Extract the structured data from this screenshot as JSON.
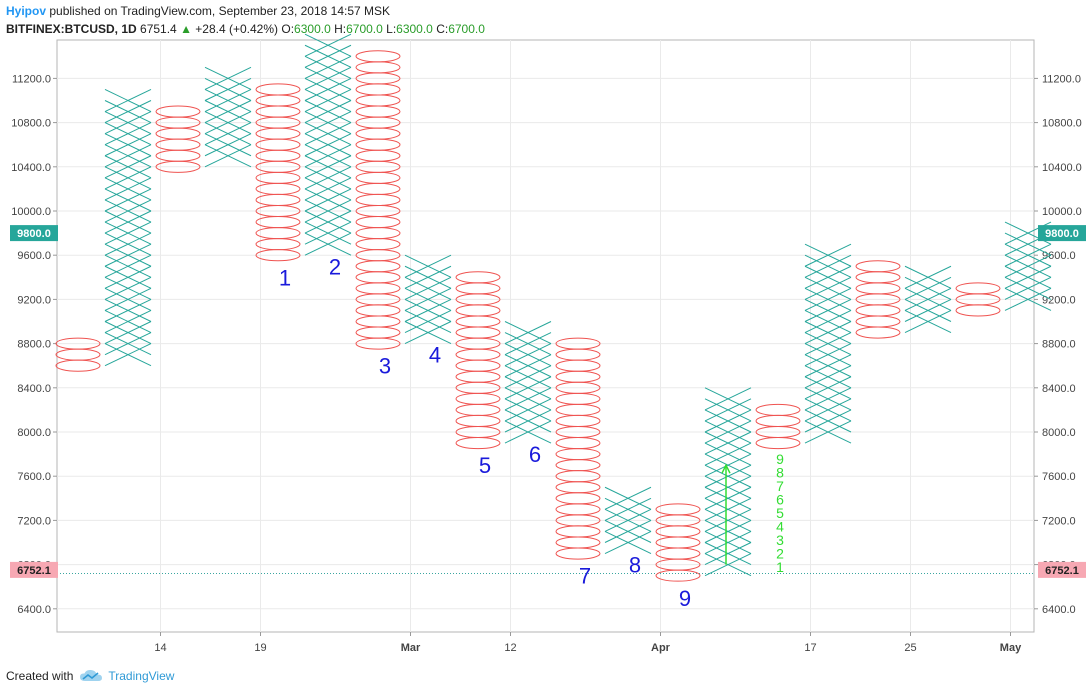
{
  "header": {
    "user": "Hyipov",
    "published": "published on TradingView.com, September 23, 2018 14:57 MSK",
    "symbol": "BITFINEX:BTCUSD, 1D",
    "last": "6751.4",
    "arrow": "▲",
    "change": "+28.4 (+0.42%)",
    "o_label": "O:",
    "o_val": "6300.0",
    "h_label": "H:",
    "h_val": "6700.0",
    "l_label": "L:",
    "l_val": "6300.0",
    "c_label": "C:",
    "c_val": "6700.0"
  },
  "footer": {
    "created": "Created with",
    "brand": "TradingView"
  },
  "colors": {
    "x_color": "#26a69a",
    "o_color": "#ef5350",
    "label_color": "#1a1adb",
    "green_text": "#33dd33",
    "box_9800": "#26a69a",
    "box_6752": "#f7a8b3",
    "grid": "#eaeaea"
  },
  "chart_data": {
    "type": "point-and-figure",
    "box_size": 100,
    "ylim": [
      6200,
      11600
    ],
    "y_ticks": [
      "6400.0",
      "6800.0",
      "7200.0",
      "7600.0",
      "8000.0",
      "8400.0",
      "8800.0",
      "9200.0",
      "9600.0",
      "10000.0",
      "10400.0",
      "10800.0",
      "11200.0"
    ],
    "x_ticks": [
      {
        "label": "14",
        "col": 1.65
      },
      {
        "label": "19",
        "col": 3.65
      },
      {
        "label": "Mar",
        "col": 6.65
      },
      {
        "label": "12",
        "col": 8.65
      },
      {
        "label": "Apr",
        "col": 11.65
      },
      {
        "label": "17",
        "col": 14.65
      },
      {
        "label": "25",
        "col": 16.65
      },
      {
        "label": "May",
        "col": 18.65
      }
    ],
    "columns": [
      {
        "type": "O",
        "low": 8600,
        "high": 8800
      },
      {
        "type": "X",
        "low": 8700,
        "high": 11000
      },
      {
        "type": "O",
        "low": 10400,
        "high": 10900
      },
      {
        "type": "X",
        "low": 10500,
        "high": 11200
      },
      {
        "type": "O",
        "low": 9600,
        "high": 11100
      },
      {
        "type": "X",
        "low": 9700,
        "high": 11500
      },
      {
        "type": "O",
        "low": 8800,
        "high": 11400
      },
      {
        "type": "X",
        "low": 8900,
        "high": 9500
      },
      {
        "type": "O",
        "low": 7900,
        "high": 9400
      },
      {
        "type": "X",
        "low": 8000,
        "high": 8900
      },
      {
        "type": "O",
        "low": 6900,
        "high": 8800
      },
      {
        "type": "X",
        "low": 7000,
        "high": 7400
      },
      {
        "type": "O",
        "low": 6700,
        "high": 7300
      },
      {
        "type": "X",
        "low": 6800,
        "high": 8300
      },
      {
        "type": "O",
        "low": 7900,
        "high": 8200
      },
      {
        "type": "X",
        "low": 8000,
        "high": 9600
      },
      {
        "type": "O",
        "low": 8900,
        "high": 9500
      },
      {
        "type": "X",
        "low": 9000,
        "high": 9400
      },
      {
        "type": "O",
        "low": 9100,
        "high": 9300
      },
      {
        "type": "X",
        "low": 9200,
        "high": 9800
      }
    ],
    "annotations": [
      {
        "text": "1",
        "col": 4,
        "y": 9400
      },
      {
        "text": "2",
        "col": 5,
        "y": 9500
      },
      {
        "text": "3",
        "col": 6,
        "y": 8600
      },
      {
        "text": "4",
        "col": 7,
        "y": 8700
      },
      {
        "text": "5",
        "col": 8,
        "y": 7700
      },
      {
        "text": "6",
        "col": 9,
        "y": 7800
      },
      {
        "text": "7",
        "col": 10,
        "y": 6700
      },
      {
        "text": "8",
        "col": 11,
        "y": 6800
      },
      {
        "text": "9",
        "col": 12,
        "y": 6500
      }
    ],
    "count_labels": [
      "1",
      "2",
      "3",
      "4",
      "5",
      "6",
      "7",
      "8",
      "9"
    ],
    "count_col": 14,
    "arrow_col": 13,
    "arrow_range": [
      6800,
      7700
    ],
    "price_boxes": [
      {
        "label": "9800.0",
        "y": 9800,
        "kind": "x"
      },
      {
        "label": "6752.1",
        "y": 6752.1,
        "kind": "o"
      }
    ],
    "current_line": 6720
  }
}
